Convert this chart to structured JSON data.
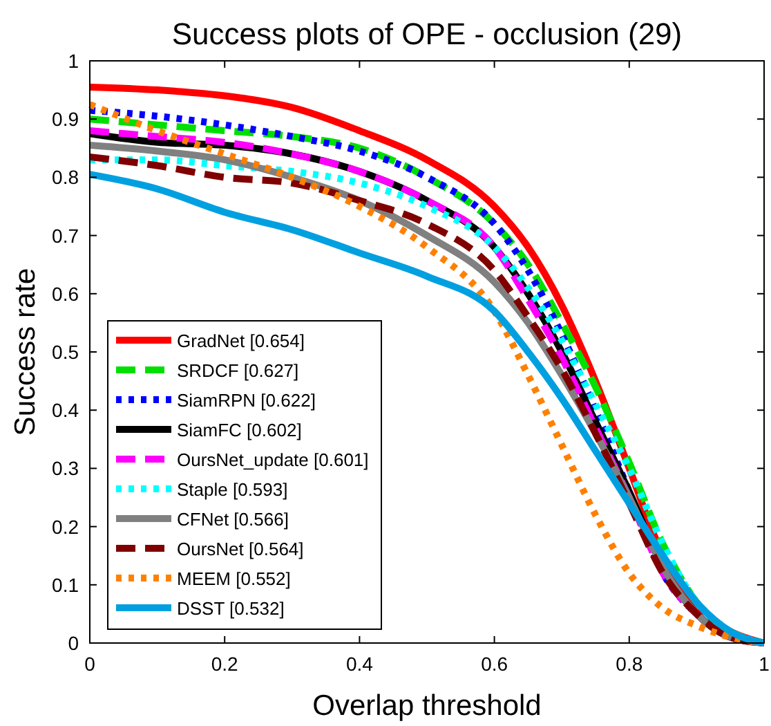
{
  "chart_data": {
    "type": "line",
    "title": "Success plots of OPE - occlusion (29)",
    "xlabel": "Overlap threshold",
    "ylabel": "Success rate",
    "x": [
      0,
      0.1,
      0.2,
      0.3,
      0.4,
      0.5,
      0.6,
      0.65,
      0.7,
      0.75,
      0.8,
      0.85,
      0.9,
      0.95,
      1
    ],
    "xlim": [
      0,
      1
    ],
    "ylim": [
      0,
      1
    ],
    "xticks": [
      0,
      0.2,
      0.4,
      0.6,
      0.8,
      1
    ],
    "yticks": [
      0,
      0.1,
      0.2,
      0.3,
      0.4,
      0.5,
      0.6,
      0.7,
      0.8,
      0.9,
      1
    ],
    "grid": false,
    "legend": "bottom left",
    "series": [
      {
        "name": "GradNet [0.654]",
        "color": "#ff0000",
        "line_style": "solid",
        "values": [
          0.955,
          0.95,
          0.94,
          0.92,
          0.88,
          0.83,
          0.75,
          0.68,
          0.58,
          0.45,
          0.3,
          0.15,
          0.06,
          0.02,
          0
        ]
      },
      {
        "name": "SRDCF [0.627]",
        "color": "#00e000",
        "line_style": "dashed",
        "values": [
          0.9,
          0.89,
          0.88,
          0.87,
          0.85,
          0.8,
          0.72,
          0.65,
          0.55,
          0.44,
          0.31,
          0.17,
          0.07,
          0.02,
          0
        ]
      },
      {
        "name": "SiamRPN [0.622]",
        "color": "#0000ff",
        "line_style": "dotted",
        "values": [
          0.915,
          0.905,
          0.89,
          0.87,
          0.845,
          0.8,
          0.72,
          0.64,
          0.53,
          0.4,
          0.26,
          0.12,
          0.05,
          0.01,
          0
        ]
      },
      {
        "name": "SiamFC [0.602]",
        "color": "#000000",
        "line_style": "solid",
        "values": [
          0.875,
          0.86,
          0.855,
          0.84,
          0.81,
          0.76,
          0.68,
          0.6,
          0.5,
          0.38,
          0.26,
          0.13,
          0.05,
          0.01,
          0
        ]
      },
      {
        "name": "OursNet_update [0.601]",
        "color": "#ff00ff",
        "line_style": "dashed",
        "values": [
          0.88,
          0.87,
          0.86,
          0.84,
          0.81,
          0.76,
          0.68,
          0.59,
          0.49,
          0.37,
          0.25,
          0.12,
          0.05,
          0.01,
          0
        ]
      },
      {
        "name": "Staple [0.593]",
        "color": "#00ffff",
        "line_style": "dotted",
        "values": [
          0.83,
          0.83,
          0.82,
          0.81,
          0.79,
          0.75,
          0.68,
          0.61,
          0.52,
          0.41,
          0.3,
          0.17,
          0.07,
          0.02,
          0
        ]
      },
      {
        "name": "CFNet [0.566]",
        "color": "#808080",
        "line_style": "solid",
        "values": [
          0.855,
          0.845,
          0.83,
          0.8,
          0.76,
          0.7,
          0.62,
          0.55,
          0.46,
          0.36,
          0.25,
          0.13,
          0.05,
          0.01,
          0
        ]
      },
      {
        "name": "OursNet [0.564]",
        "color": "#800000",
        "line_style": "dashed",
        "values": [
          0.835,
          0.82,
          0.8,
          0.79,
          0.76,
          0.72,
          0.64,
          0.56,
          0.47,
          0.36,
          0.24,
          0.12,
          0.05,
          0.01,
          0
        ]
      },
      {
        "name": "MEEM [0.552]",
        "color": "#ff8000",
        "line_style": "dotted",
        "values": [
          0.925,
          0.88,
          0.84,
          0.8,
          0.75,
          0.68,
          0.57,
          0.46,
          0.34,
          0.22,
          0.12,
          0.06,
          0.03,
          0.01,
          0
        ]
      },
      {
        "name": "DSST [0.532]",
        "color": "#00a0e0",
        "line_style": "solid",
        "values": [
          0.805,
          0.78,
          0.74,
          0.71,
          0.67,
          0.63,
          0.57,
          0.5,
          0.42,
          0.33,
          0.24,
          0.15,
          0.07,
          0.02,
          0
        ]
      }
    ]
  }
}
